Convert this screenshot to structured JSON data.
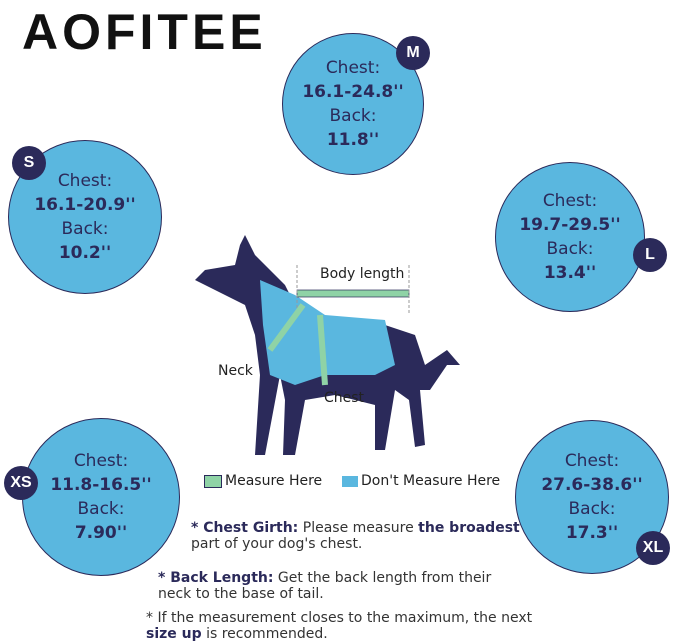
{
  "brand": "AOFITEE",
  "colors": {
    "bubble": "#5ab7df",
    "navy": "#2b2a5a",
    "tape": "#8fd3a6"
  },
  "sizes": [
    {
      "size": "M",
      "chest_label": "Chest:",
      "chest": "16.1-24.8''",
      "back_label": "Back:",
      "back": "11.8''"
    },
    {
      "size": "S",
      "chest_label": "Chest:",
      "chest": "16.1-20.9''",
      "back_label": "Back:",
      "back": "10.2''"
    },
    {
      "size": "L",
      "chest_label": "Chest:",
      "chest": "19.7-29.5''",
      "back_label": "Back:",
      "back": "13.4''"
    },
    {
      "size": "XS",
      "chest_label": "Chest:",
      "chest": "11.8-16.5''",
      "back_label": "Back:",
      "back": "7.90''"
    },
    {
      "size": "XL",
      "chest_label": "Chest:",
      "chest": "27.6-38.6''",
      "back_label": "Back:",
      "back": "17.3''"
    }
  ],
  "diagram": {
    "body_length": "Body length",
    "neck": "Neck",
    "chest": "Chest"
  },
  "legend": {
    "measure": "Measure Here",
    "dont": "Don't Measure Here"
  },
  "notes": {
    "chest_title": "* Chest Girth:",
    "chest_text1": "Please measure",
    "chest_bold": "the broadest",
    "chest_text2": "part of your dog's chest.",
    "back_title": "* Back Length:",
    "back_text": "Get the back length from their neck to the base of tail.",
    "tip_text": "* If the measurement closes to the maximum, the next",
    "tip_bold": "size up",
    "tip_text2": "is recommended."
  }
}
